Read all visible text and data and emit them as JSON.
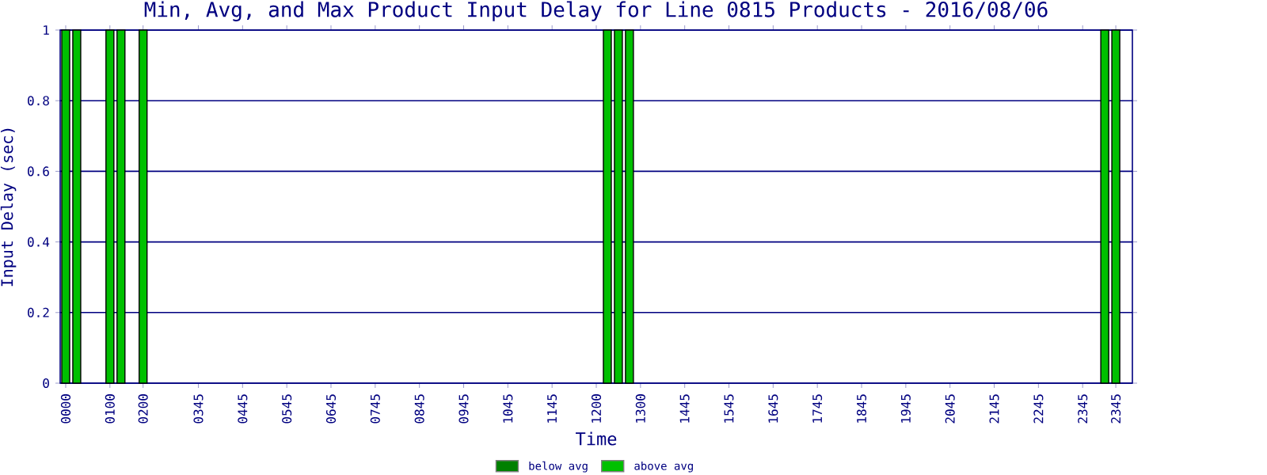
{
  "chart_data": {
    "type": "bar",
    "title": "Min, Avg, and Max Product Input Delay for Line 0815 Products - 2016/08/06",
    "xlabel": "Time",
    "ylabel": "Input Delay (sec)",
    "categories": [
      "0000",
      null,
      null,
      null,
      "0100",
      null,
      null,
      "0200",
      null,
      null,
      null,
      null,
      "0345",
      null,
      null,
      null,
      "0445",
      null,
      null,
      null,
      "0545",
      null,
      null,
      null,
      "0645",
      null,
      null,
      null,
      "0745",
      null,
      null,
      null,
      "0845",
      null,
      null,
      null,
      "0945",
      null,
      null,
      null,
      "1045",
      null,
      null,
      null,
      "1145",
      null,
      null,
      null,
      "1200",
      null,
      null,
      null,
      "1300",
      null,
      null,
      null,
      "1445",
      null,
      null,
      null,
      "1545",
      null,
      null,
      null,
      "1645",
      null,
      null,
      null,
      "1745",
      null,
      null,
      null,
      "1845",
      null,
      null,
      null,
      "1945",
      null,
      null,
      null,
      "2045",
      null,
      null,
      null,
      "2145",
      null,
      null,
      null,
      "2245",
      null,
      null,
      null,
      "2345",
      null,
      null,
      "2345",
      null
    ],
    "series": [
      {
        "name": "below avg",
        "color": "#008000",
        "values": [
          null,
          null,
          null,
          null,
          null,
          null,
          null,
          null,
          null,
          null,
          null,
          null,
          null,
          null,
          null,
          null,
          null,
          null,
          null,
          null,
          null,
          null,
          null,
          null,
          null,
          null,
          null,
          null,
          null,
          null,
          null,
          null,
          null,
          null,
          null,
          null,
          null,
          null,
          null,
          null,
          null,
          null,
          null,
          null,
          null,
          null,
          null,
          null,
          null,
          null,
          null,
          null,
          null,
          null,
          null,
          null,
          null,
          null,
          null,
          null,
          null,
          null,
          null,
          null,
          null,
          null,
          null,
          null,
          null,
          null,
          null,
          null,
          null,
          null,
          null,
          null,
          null,
          null,
          null,
          null,
          null,
          null,
          null,
          null,
          null,
          null,
          null,
          null,
          null,
          null,
          null,
          null,
          null,
          null,
          null,
          null,
          null
        ]
      },
      {
        "name": "above avg",
        "color": "#00c000",
        "values": [
          1,
          1,
          null,
          null,
          1,
          1,
          null,
          1,
          null,
          null,
          null,
          null,
          null,
          null,
          null,
          null,
          null,
          null,
          null,
          null,
          null,
          null,
          null,
          null,
          null,
          null,
          null,
          null,
          null,
          null,
          null,
          null,
          null,
          null,
          null,
          null,
          null,
          null,
          null,
          null,
          null,
          null,
          null,
          null,
          null,
          null,
          null,
          null,
          null,
          1,
          1,
          1,
          null,
          null,
          null,
          null,
          null,
          null,
          null,
          null,
          null,
          null,
          null,
          null,
          null,
          null,
          null,
          null,
          null,
          null,
          null,
          null,
          null,
          null,
          null,
          null,
          null,
          null,
          null,
          null,
          null,
          null,
          null,
          null,
          null,
          null,
          null,
          null,
          null,
          null,
          null,
          null,
          null,
          null,
          1,
          1,
          null
        ]
      }
    ],
    "ylim": [
      0,
      1
    ],
    "yticks": [
      0,
      0.2,
      0.4,
      0.6,
      0.8,
      1
    ],
    "grid": "y",
    "legend": "bottom"
  }
}
